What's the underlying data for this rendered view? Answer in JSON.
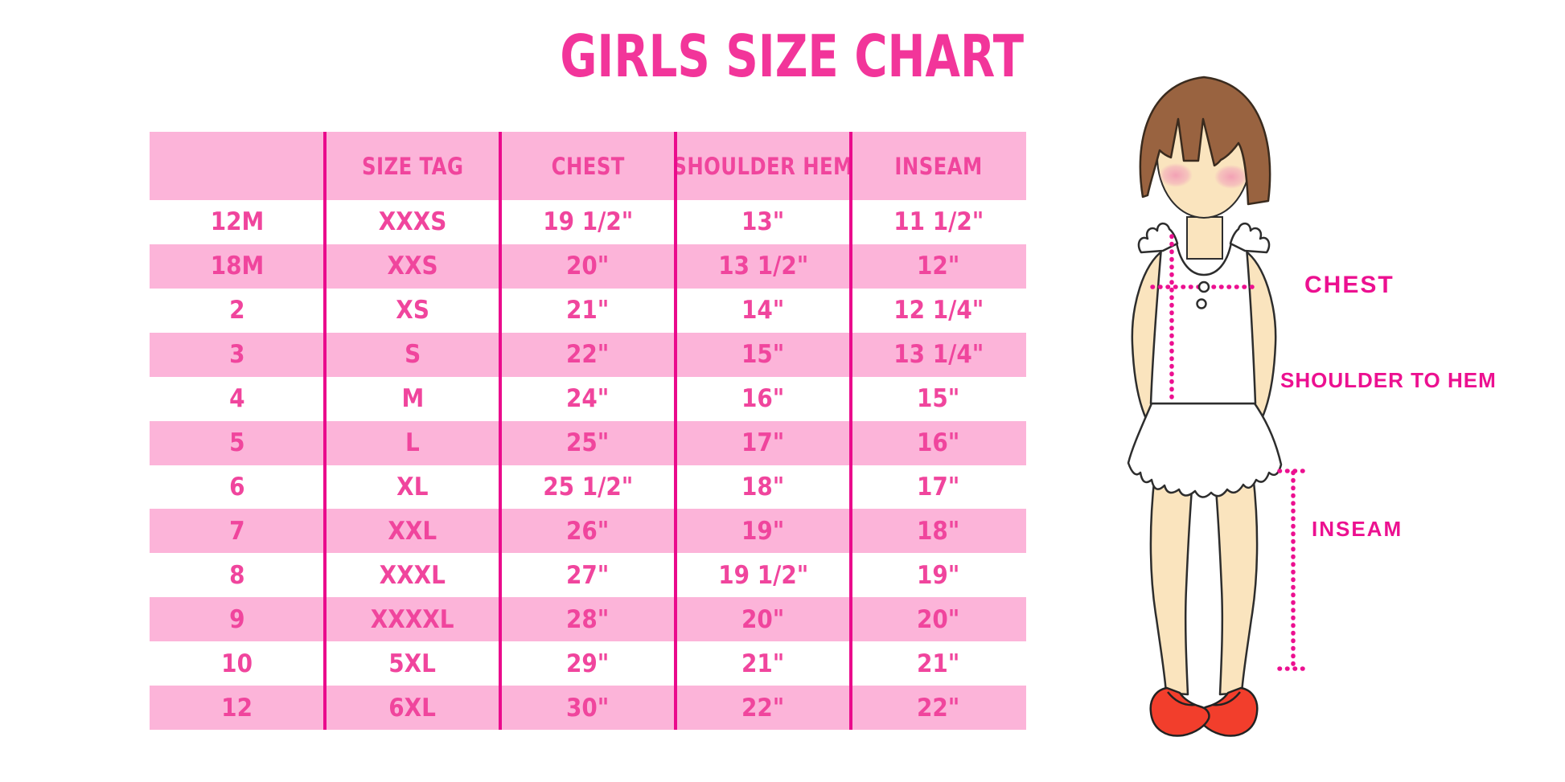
{
  "title": "GIRLS SIZE CHART",
  "table": {
    "headers": [
      "",
      "SIZE TAG",
      "CHEST",
      "SHOULDER HEM",
      "INSEAM"
    ],
    "rows": [
      {
        "size": "12M",
        "size_tag": "XXXS",
        "chest": "19 1/2\"",
        "shoulder_hem": "13\"",
        "inseam": "11 1/2\""
      },
      {
        "size": "18M",
        "size_tag": "XXS",
        "chest": "20\"",
        "shoulder_hem": "13 1/2\"",
        "inseam": "12\""
      },
      {
        "size": "2",
        "size_tag": "XS",
        "chest": "21\"",
        "shoulder_hem": "14\"",
        "inseam": "12 1/4\""
      },
      {
        "size": "3",
        "size_tag": "S",
        "chest": "22\"",
        "shoulder_hem": "15\"",
        "inseam": "13 1/4\""
      },
      {
        "size": "4",
        "size_tag": "M",
        "chest": "24\"",
        "shoulder_hem": "16\"",
        "inseam": "15\""
      },
      {
        "size": "5",
        "size_tag": "L",
        "chest": "25\"",
        "shoulder_hem": "17\"",
        "inseam": "16\""
      },
      {
        "size": "6",
        "size_tag": "XL",
        "chest": "25 1/2\"",
        "shoulder_hem": "18\"",
        "inseam": "17\""
      },
      {
        "size": "7",
        "size_tag": "XXL",
        "chest": "26\"",
        "shoulder_hem": "19\"",
        "inseam": "18\""
      },
      {
        "size": "8",
        "size_tag": "XXXL",
        "chest": "27\"",
        "shoulder_hem": "19 1/2\"",
        "inseam": "19\""
      },
      {
        "size": "9",
        "size_tag": "XXXXL",
        "chest": "28\"",
        "shoulder_hem": "20\"",
        "inseam": "20\""
      },
      {
        "size": "10",
        "size_tag": "5XL",
        "chest": "29\"",
        "shoulder_hem": "21\"",
        "inseam": "21\""
      },
      {
        "size": "12",
        "size_tag": "6XL",
        "chest": "30\"",
        "shoulder_hem": "22\"",
        "inseam": "22\""
      }
    ]
  },
  "diagram": {
    "figure": "toddler-girl-illustration",
    "labels": {
      "chest": "CHEST",
      "shoulder_to_hem": "SHOULDER TO HEM",
      "inseam": "INSEAM"
    }
  },
  "colors": {
    "row_pink": "#FCB4D9",
    "divider_magenta": "#EA0B8C",
    "text_pink": "#F0459D",
    "title_pink": "#F2359A",
    "label_magenta": "#EC1090",
    "hair_brown": "#996340",
    "skin": "#FAE4BE",
    "shoe_red": "#F23E2C"
  },
  "chart_data": {
    "type": "table",
    "title": "GIRLS SIZE CHART",
    "columns": [
      "",
      "SIZE TAG",
      "CHEST",
      "SHOULDER HEM",
      "INSEAM"
    ],
    "rows": [
      [
        "12M",
        "XXXS",
        "19 1/2\"",
        "13\"",
        "11 1/2\""
      ],
      [
        "18M",
        "XXS",
        "20\"",
        "13 1/2\"",
        "12\""
      ],
      [
        "2",
        "XS",
        "21\"",
        "14\"",
        "12 1/4\""
      ],
      [
        "3",
        "S",
        "22\"",
        "15\"",
        "13 1/4\""
      ],
      [
        "4",
        "M",
        "24\"",
        "16\"",
        "15\""
      ],
      [
        "5",
        "L",
        "25\"",
        "17\"",
        "16\""
      ],
      [
        "6",
        "XL",
        "25 1/2\"",
        "18\"",
        "17\""
      ],
      [
        "7",
        "XXL",
        "26\"",
        "19\"",
        "18\""
      ],
      [
        "8",
        "XXXL",
        "27\"",
        "19 1/2\"",
        "19\""
      ],
      [
        "9",
        "XXXXL",
        "28\"",
        "20\"",
        "20\""
      ],
      [
        "10",
        "5XL",
        "29\"",
        "21\"",
        "21\""
      ],
      [
        "12",
        "6XL",
        "30\"",
        "22\"",
        "22\""
      ]
    ],
    "layout_hints": {
      "alternating_row_fill": [
        "white",
        "pink"
      ],
      "header_fill": "pink",
      "column_dividers": "magenta vertical lines"
    }
  }
}
